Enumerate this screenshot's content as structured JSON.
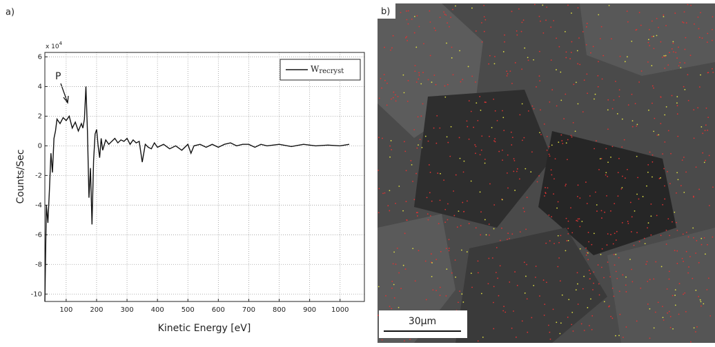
{
  "chart_data": {
    "type": "line",
    "panel_label": "a)",
    "multiplier": "x 10",
    "multiplier_exp": "4",
    "annotation": "P",
    "x_label": "Kinetic Energy [eV]",
    "y_label": "Counts/Sec",
    "x": [
      30,
      35,
      40,
      45,
      50,
      55,
      60,
      65,
      70,
      80,
      90,
      100,
      110,
      120,
      130,
      140,
      150,
      155,
      160,
      165,
      170,
      175,
      180,
      185,
      190,
      195,
      200,
      205,
      210,
      215,
      220,
      230,
      240,
      250,
      260,
      270,
      280,
      290,
      300,
      310,
      320,
      330,
      340,
      350,
      360,
      370,
      380,
      390,
      400,
      420,
      440,
      460,
      480,
      500,
      510,
      520,
      540,
      560,
      580,
      600,
      620,
      640,
      660,
      680,
      700,
      720,
      740,
      760,
      800,
      840,
      880,
      920,
      960,
      1000,
      1030
    ],
    "series": [
      {
        "name": "W",
        "name_sub": "recryst",
        "color": "#111111",
        "values": [
          -10.5,
          -4,
          -5.2,
          -3,
          -0.5,
          -1.8,
          0.5,
          1.0,
          1.8,
          1.5,
          1.9,
          1.7,
          2.0,
          1.2,
          1.6,
          1.0,
          1.5,
          1.2,
          1.8,
          4.0,
          1.0,
          -3.5,
          -1.5,
          -5.3,
          -1,
          0.8,
          1.1,
          0,
          -0.8,
          0.5,
          -0.3,
          0.4,
          0.1,
          0.3,
          0.5,
          0.2,
          0.4,
          0.3,
          0.5,
          0.1,
          0.4,
          0.2,
          0.3,
          -1.1,
          0.1,
          -0.1,
          -0.2,
          0.2,
          -0.1,
          0.1,
          -0.2,
          0,
          -0.3,
          0.1,
          -0.5,
          0,
          0.1,
          -0.1,
          0.1,
          -0.1,
          0.1,
          0.2,
          0,
          0.1,
          0.1,
          -0.1,
          0.1,
          0,
          0.1,
          -0.05,
          0.1,
          0,
          0.05,
          0,
          0.1
        ]
      }
    ],
    "xlim": [
      30,
      1080
    ],
    "ylim": [
      -10.5,
      6.3
    ],
    "xticks": [
      100,
      200,
      300,
      400,
      500,
      600,
      700,
      800,
      900,
      1000
    ],
    "yticks": [
      -10,
      -8,
      -6,
      -4,
      -2,
      0,
      2,
      4,
      6
    ],
    "grid": true,
    "legend": "upper right"
  },
  "image_panel": {
    "panel_label": "b)",
    "scale_bar": "30µm"
  }
}
